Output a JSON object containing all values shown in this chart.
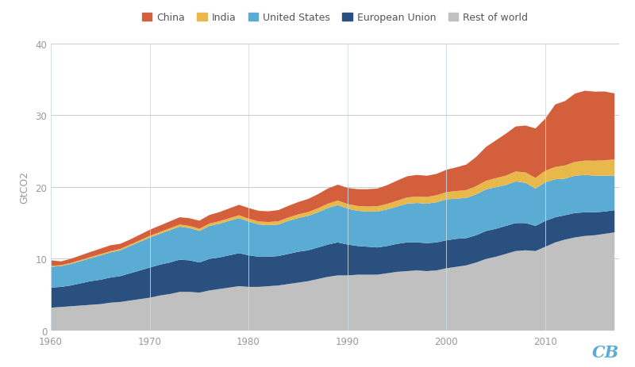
{
  "title": "",
  "ylabel": "GtCO2",
  "xlabel": "",
  "years": [
    1960,
    1961,
    1962,
    1963,
    1964,
    1965,
    1966,
    1967,
    1968,
    1969,
    1970,
    1971,
    1972,
    1973,
    1974,
    1975,
    1976,
    1977,
    1978,
    1979,
    1980,
    1981,
    1982,
    1983,
    1984,
    1985,
    1986,
    1987,
    1988,
    1989,
    1990,
    1991,
    1992,
    1993,
    1994,
    1995,
    1996,
    1997,
    1998,
    1999,
    2000,
    2001,
    2002,
    2003,
    2004,
    2005,
    2006,
    2007,
    2008,
    2009,
    2010,
    2011,
    2012,
    2013,
    2014,
    2015,
    2016,
    2017
  ],
  "rest_of_world": [
    3.2,
    3.3,
    3.4,
    3.5,
    3.6,
    3.7,
    3.9,
    4.0,
    4.2,
    4.4,
    4.6,
    4.9,
    5.1,
    5.4,
    5.4,
    5.3,
    5.6,
    5.8,
    6.0,
    6.2,
    6.1,
    6.1,
    6.2,
    6.3,
    6.5,
    6.7,
    6.9,
    7.2,
    7.5,
    7.7,
    7.7,
    7.8,
    7.8,
    7.8,
    8.0,
    8.2,
    8.3,
    8.4,
    8.3,
    8.4,
    8.7,
    8.9,
    9.1,
    9.5,
    10.0,
    10.3,
    10.7,
    11.1,
    11.2,
    11.1,
    11.7,
    12.3,
    12.7,
    13.0,
    13.2,
    13.3,
    13.5,
    13.7
  ],
  "european_union": [
    2.8,
    2.8,
    2.9,
    3.1,
    3.3,
    3.4,
    3.5,
    3.6,
    3.8,
    4.0,
    4.2,
    4.3,
    4.4,
    4.5,
    4.4,
    4.2,
    4.4,
    4.4,
    4.5,
    4.6,
    4.4,
    4.2,
    4.1,
    4.1,
    4.2,
    4.3,
    4.3,
    4.4,
    4.5,
    4.6,
    4.3,
    4.0,
    3.9,
    3.8,
    3.8,
    3.9,
    4.0,
    3.9,
    3.9,
    3.9,
    3.9,
    3.9,
    3.8,
    3.8,
    3.9,
    3.9,
    3.9,
    3.9,
    3.8,
    3.5,
    3.6,
    3.5,
    3.4,
    3.4,
    3.3,
    3.2,
    3.1,
    3.1
  ],
  "united_states": [
    2.9,
    2.9,
    3.0,
    3.1,
    3.2,
    3.4,
    3.5,
    3.6,
    3.8,
    4.0,
    4.2,
    4.3,
    4.5,
    4.6,
    4.5,
    4.4,
    4.6,
    4.7,
    4.8,
    4.9,
    4.7,
    4.5,
    4.4,
    4.4,
    4.6,
    4.7,
    4.8,
    4.9,
    5.1,
    5.2,
    5.0,
    4.9,
    4.9,
    5.0,
    5.1,
    5.2,
    5.4,
    5.5,
    5.5,
    5.6,
    5.7,
    5.6,
    5.6,
    5.7,
    5.8,
    5.8,
    5.7,
    5.8,
    5.6,
    5.2,
    5.4,
    5.3,
    5.1,
    5.2,
    5.2,
    5.1,
    5.0,
    4.8
  ],
  "india": [
    0.12,
    0.13,
    0.14,
    0.15,
    0.16,
    0.17,
    0.18,
    0.19,
    0.2,
    0.21,
    0.23,
    0.25,
    0.27,
    0.29,
    0.3,
    0.31,
    0.33,
    0.35,
    0.37,
    0.39,
    0.4,
    0.42,
    0.44,
    0.46,
    0.48,
    0.51,
    0.54,
    0.57,
    0.6,
    0.63,
    0.65,
    0.68,
    0.71,
    0.74,
    0.77,
    0.82,
    0.86,
    0.9,
    0.94,
    0.98,
    1.02,
    1.06,
    1.1,
    1.15,
    1.2,
    1.26,
    1.32,
    1.39,
    1.46,
    1.5,
    1.61,
    1.72,
    1.83,
    1.93,
    2.01,
    2.09,
    2.17,
    2.25
  ],
  "china": [
    0.78,
    0.53,
    0.58,
    0.65,
    0.72,
    0.77,
    0.82,
    0.72,
    0.71,
    0.79,
    0.85,
    0.9,
    0.96,
    1.02,
    1.07,
    1.12,
    1.19,
    1.27,
    1.36,
    1.45,
    1.49,
    1.48,
    1.5,
    1.55,
    1.62,
    1.72,
    1.82,
    1.96,
    2.12,
    2.22,
    2.24,
    2.35,
    2.41,
    2.47,
    2.62,
    2.8,
    2.95,
    3.01,
    2.95,
    2.98,
    3.12,
    3.31,
    3.55,
    4.08,
    4.72,
    5.28,
    5.84,
    6.28,
    6.53,
    6.89,
    7.26,
    8.72,
    8.99,
    9.52,
    9.74,
    9.63,
    9.57,
    9.23
  ],
  "colors": {
    "china": "#d45f3c",
    "india": "#e8b84b",
    "united_states": "#5bacd4",
    "european_union": "#2a5080",
    "rest_of_world": "#c0c0c0"
  },
  "legend_labels": [
    "China",
    "India",
    "United States",
    "European Union",
    "Rest of world"
  ],
  "ylim": [
    0,
    40
  ],
  "yticks": [
    0,
    10,
    20,
    30,
    40
  ],
  "background_color": "#ffffff",
  "grid_color": "#cccccc",
  "cb_color": "#5bacd4",
  "figsize": [
    8.0,
    4.64
  ],
  "dpi": 100
}
